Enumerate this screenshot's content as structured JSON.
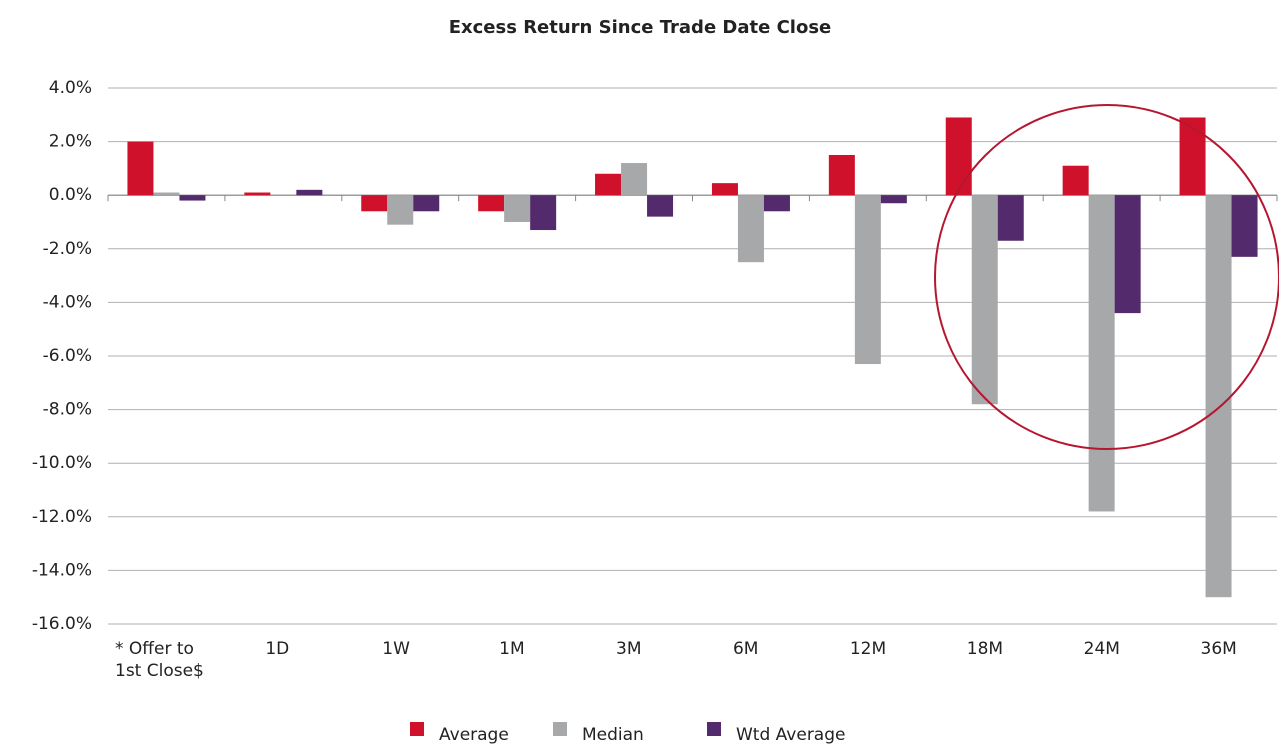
{
  "chart_data": {
    "type": "bar",
    "title": "Excess Return Since Trade Date Close",
    "categories": [
      "* Offer to 1st Close$",
      "1D",
      "1W",
      "1M",
      "3M",
      "6M",
      "12M",
      "18M",
      "24M",
      "36M"
    ],
    "series": [
      {
        "name": "Average",
        "color": "#d0112b",
        "values": [
          2.0,
          0.1,
          -0.6,
          -0.6,
          0.8,
          0.45,
          1.5,
          2.9,
          1.1,
          2.9
        ]
      },
      {
        "name": "Median",
        "color": "#a7a8aa",
        "values": [
          0.1,
          0,
          -1.1,
          -1.0,
          1.2,
          -2.5,
          -6.3,
          -7.8,
          -11.8,
          -15.0
        ]
      },
      {
        "name": "Wtd Average",
        "color": "#532a6b",
        "values": [
          -0.2,
          0.2,
          -0.6,
          -1.3,
          -0.8,
          -0.6,
          -0.3,
          -1.7,
          -4.4,
          -2.3
        ]
      }
    ],
    "ylim": [
      -16,
      4
    ],
    "yticks": [
      {
        "value": 4,
        "label": "4.0%"
      },
      {
        "value": 2,
        "label": "2.0%"
      },
      {
        "value": 0,
        "label": "0.0%"
      },
      {
        "value": -2,
        "label": "-2.0%"
      },
      {
        "value": -4,
        "label": "-4.0%"
      },
      {
        "value": -6,
        "label": "-6.0%"
      },
      {
        "value": -8,
        "label": "-8.0%"
      },
      {
        "value": -10,
        "label": "-10.0%"
      },
      {
        "value": -12,
        "label": "-12.0%"
      },
      {
        "value": -14,
        "label": "-14.0%"
      },
      {
        "value": -16,
        "label": "-16.0%"
      }
    ],
    "grid": true,
    "legend": "bottom"
  }
}
